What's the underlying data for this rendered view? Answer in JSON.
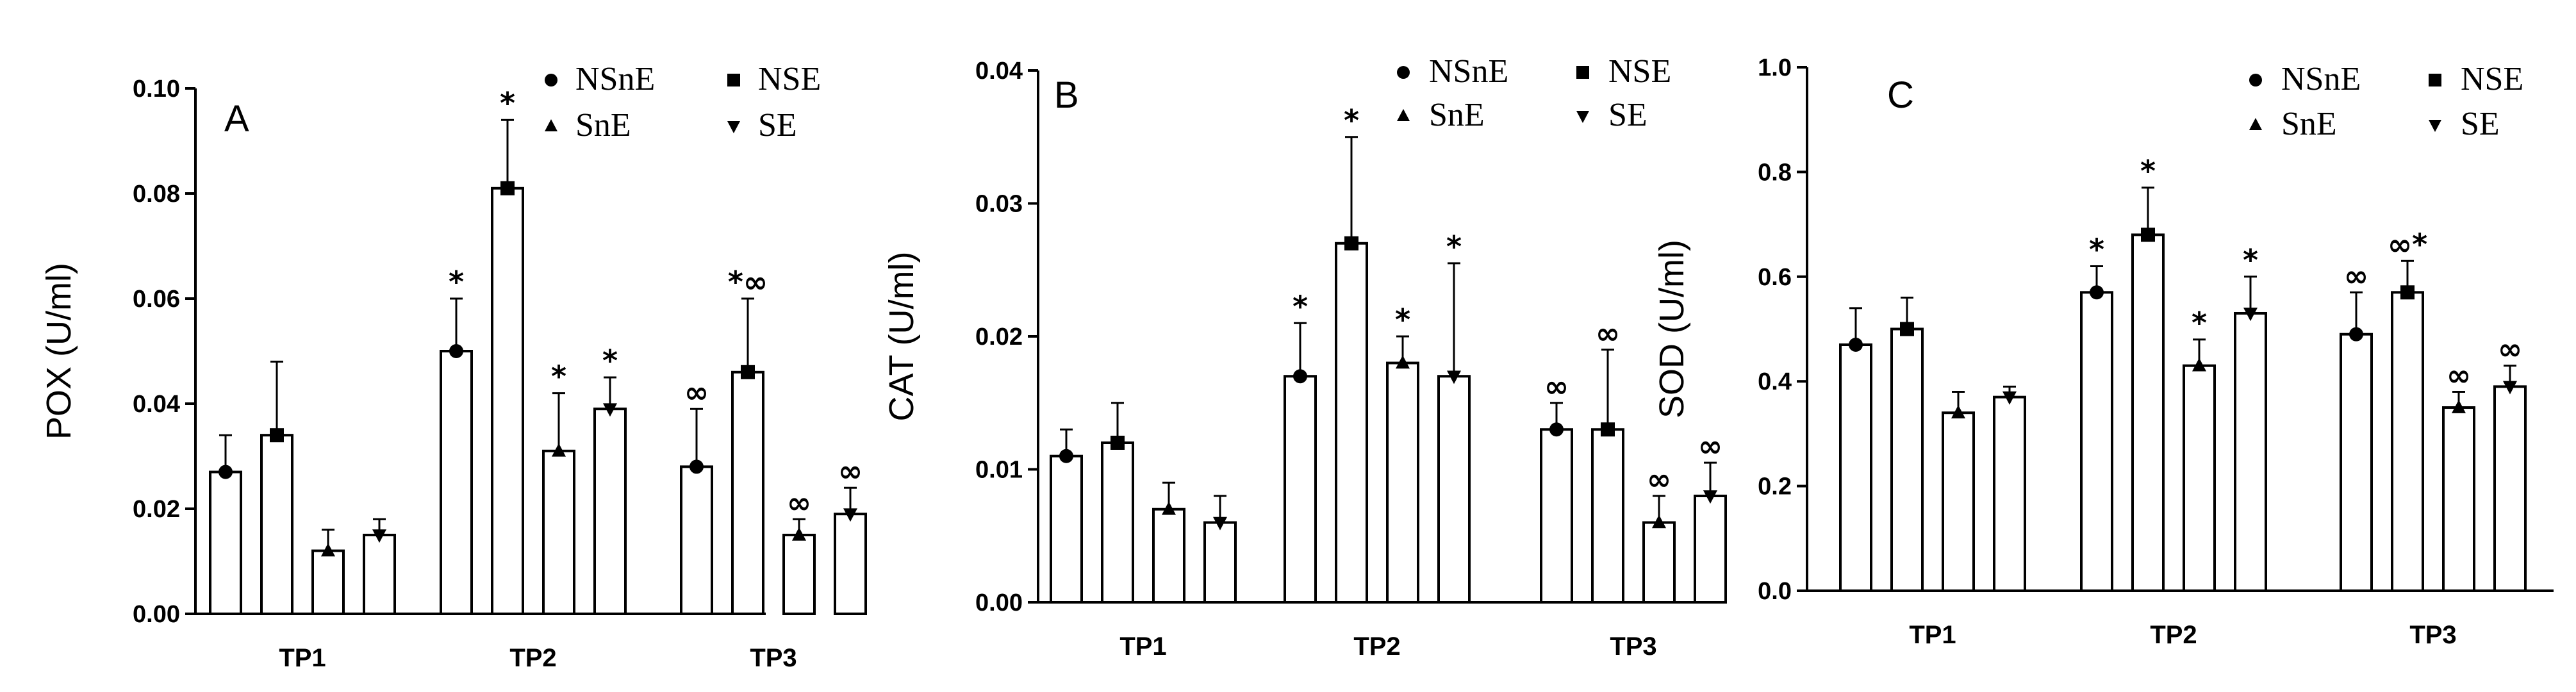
{
  "chart_data": [
    {
      "type": "bar",
      "panel_label": "A",
      "ylabel": "POX (U/ml)",
      "xlabel": "",
      "ylim": [
        0,
        0.1
      ],
      "yticks": [
        0,
        0.02,
        0.04,
        0.06,
        0.08,
        0.1
      ],
      "ytick_labels": [
        "0.00",
        "0.02",
        "0.04",
        "0.06",
        "0.08",
        "0.10"
      ],
      "grid": false,
      "legend_position": "top-right",
      "legend": [
        {
          "name": "NSnE",
          "marker": "circle"
        },
        {
          "name": "NSE",
          "marker": "square"
        },
        {
          "name": "SnE",
          "marker": "triangle-up"
        },
        {
          "name": "SE",
          "marker": "triangle-down"
        }
      ],
      "categories": [
        "TP1",
        "TP2",
        "TP3"
      ],
      "series": [
        {
          "name": "NSnE",
          "values": [
            0.027,
            0.05,
            0.028
          ],
          "errors": [
            0.007,
            0.01,
            0.011
          ],
          "annotations": [
            "",
            "*",
            "∞"
          ]
        },
        {
          "name": "NSE",
          "values": [
            0.034,
            0.081,
            0.046
          ],
          "errors": [
            0.014,
            0.013,
            0.014
          ],
          "annotations": [
            "",
            "*",
            "*∞"
          ]
        },
        {
          "name": "SnE",
          "values": [
            0.012,
            0.031,
            0.015
          ],
          "errors": [
            0.004,
            0.011,
            0.003
          ],
          "annotations": [
            "",
            "*",
            "∞"
          ]
        },
        {
          "name": "SE",
          "values": [
            0.015,
            0.039,
            0.019
          ],
          "errors": [
            0.003,
            0.006,
            0.005
          ],
          "annotations": [
            "",
            "*",
            "∞"
          ]
        }
      ]
    },
    {
      "type": "bar",
      "panel_label": "B",
      "ylabel": "CAT (U/ml)",
      "xlabel": "",
      "ylim": [
        0,
        0.04
      ],
      "yticks": [
        0,
        0.01,
        0.02,
        0.03,
        0.04
      ],
      "ytick_labels": [
        "0.00",
        "0.01",
        "0.02",
        "0.03",
        "0.04"
      ],
      "grid": false,
      "legend_position": "top-right",
      "legend": [
        {
          "name": "NSnE",
          "marker": "circle"
        },
        {
          "name": "NSE",
          "marker": "square"
        },
        {
          "name": "SnE",
          "marker": "triangle-up"
        },
        {
          "name": "SE",
          "marker": "triangle-down"
        }
      ],
      "categories": [
        "TP1",
        "TP2",
        "TP3"
      ],
      "series": [
        {
          "name": "NSnE",
          "values": [
            0.011,
            0.017,
            0.013
          ],
          "errors": [
            0.002,
            0.004,
            0.002
          ],
          "annotations": [
            "",
            "*",
            "∞"
          ]
        },
        {
          "name": "NSE",
          "values": [
            0.012,
            0.027,
            0.013
          ],
          "errors": [
            0.003,
            0.008,
            0.006
          ],
          "annotations": [
            "",
            "*",
            "∞"
          ]
        },
        {
          "name": "SnE",
          "values": [
            0.007,
            0.018,
            0.006
          ],
          "errors": [
            0.002,
            0.002,
            0.002
          ],
          "annotations": [
            "",
            "*",
            "∞"
          ]
        },
        {
          "name": "SE",
          "values": [
            0.006,
            0.017,
            0.008
          ],
          "errors": [
            0.002,
            0.0085,
            0.0025
          ],
          "annotations": [
            "",
            "*",
            "∞"
          ]
        }
      ]
    },
    {
      "type": "bar",
      "panel_label": "C",
      "ylabel": "SOD (U/ml)",
      "xlabel": "",
      "ylim": [
        0,
        1.0
      ],
      "yticks": [
        0,
        0.2,
        0.4,
        0.6,
        0.8,
        1.0
      ],
      "ytick_labels": [
        "0.0",
        "0.2",
        "0.4",
        "0.6",
        "0.8",
        "1.0"
      ],
      "grid": false,
      "legend_position": "top-right",
      "legend": [
        {
          "name": "NSnE",
          "marker": "circle"
        },
        {
          "name": "NSE",
          "marker": "square"
        },
        {
          "name": "SnE",
          "marker": "triangle-up"
        },
        {
          "name": "SE",
          "marker": "triangle-down"
        }
      ],
      "categories": [
        "TP1",
        "TP2",
        "TP3"
      ],
      "series": [
        {
          "name": "NSnE",
          "values": [
            0.47,
            0.57,
            0.49
          ],
          "errors": [
            0.07,
            0.05,
            0.08
          ],
          "annotations": [
            "",
            "*",
            "∞"
          ]
        },
        {
          "name": "NSE",
          "values": [
            0.5,
            0.68,
            0.57
          ],
          "errors": [
            0.06,
            0.09,
            0.06
          ],
          "annotations": [
            "",
            "*",
            "∞*"
          ]
        },
        {
          "name": "SnE",
          "values": [
            0.34,
            0.43,
            0.35
          ],
          "errors": [
            0.04,
            0.05,
            0.03
          ],
          "annotations": [
            "",
            "*",
            "∞"
          ]
        },
        {
          "name": "SE",
          "values": [
            0.37,
            0.53,
            0.39
          ],
          "errors": [
            0.02,
            0.07,
            0.04
          ],
          "annotations": [
            "",
            "*",
            "∞"
          ]
        }
      ]
    }
  ]
}
